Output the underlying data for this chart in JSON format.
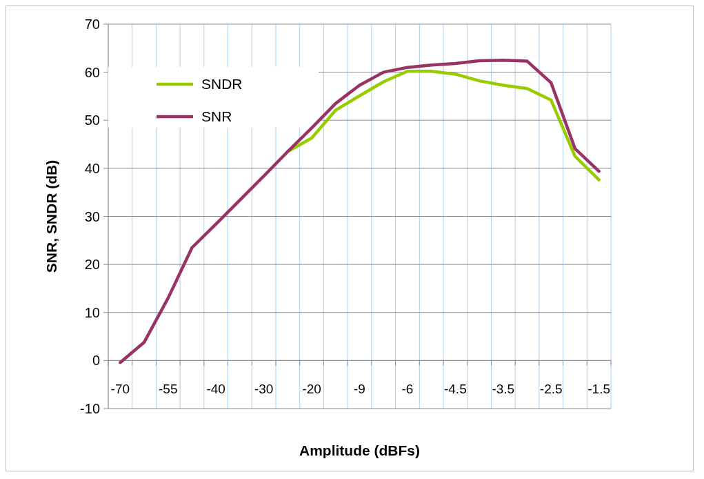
{
  "chart_data": {
    "type": "line",
    "xlabel": "Amplitude (dBFs)",
    "ylabel": "SNR, SNDR (dB)",
    "categories": [
      "-70",
      null,
      "-55",
      null,
      "-40",
      null,
      "-30",
      null,
      "-20",
      null,
      "-9",
      null,
      "-6",
      null,
      "-4.5",
      null,
      "-3.5",
      null,
      "-2.5",
      null,
      "-1.5"
    ],
    "series": [
      {
        "name": "SNDR",
        "color": "#99cc00",
        "values": [
          null,
          null,
          null,
          null,
          null,
          null,
          null,
          43.5,
          46.3,
          52.1,
          55.1,
          58.0,
          60.2,
          60.2,
          59.6,
          58.2,
          57.3,
          56.6,
          54.2,
          42.5,
          37.6
        ]
      },
      {
        "name": "SNR",
        "color": "#993366",
        "values": [
          -0.4,
          3.8,
          13.0,
          23.5,
          28.4,
          33.4,
          38.4,
          43.5,
          48.4,
          53.5,
          57.3,
          60.0,
          61.0,
          61.5,
          61.8,
          62.4,
          62.5,
          62.3,
          57.8,
          44.1,
          39.4
        ]
      }
    ],
    "ylim": [
      -10,
      70
    ],
    "yticks": [
      -10,
      0,
      10,
      20,
      30,
      40,
      50,
      60,
      70
    ],
    "grid": true,
    "legend": "top left",
    "marker": "none",
    "line_style": "solid"
  }
}
